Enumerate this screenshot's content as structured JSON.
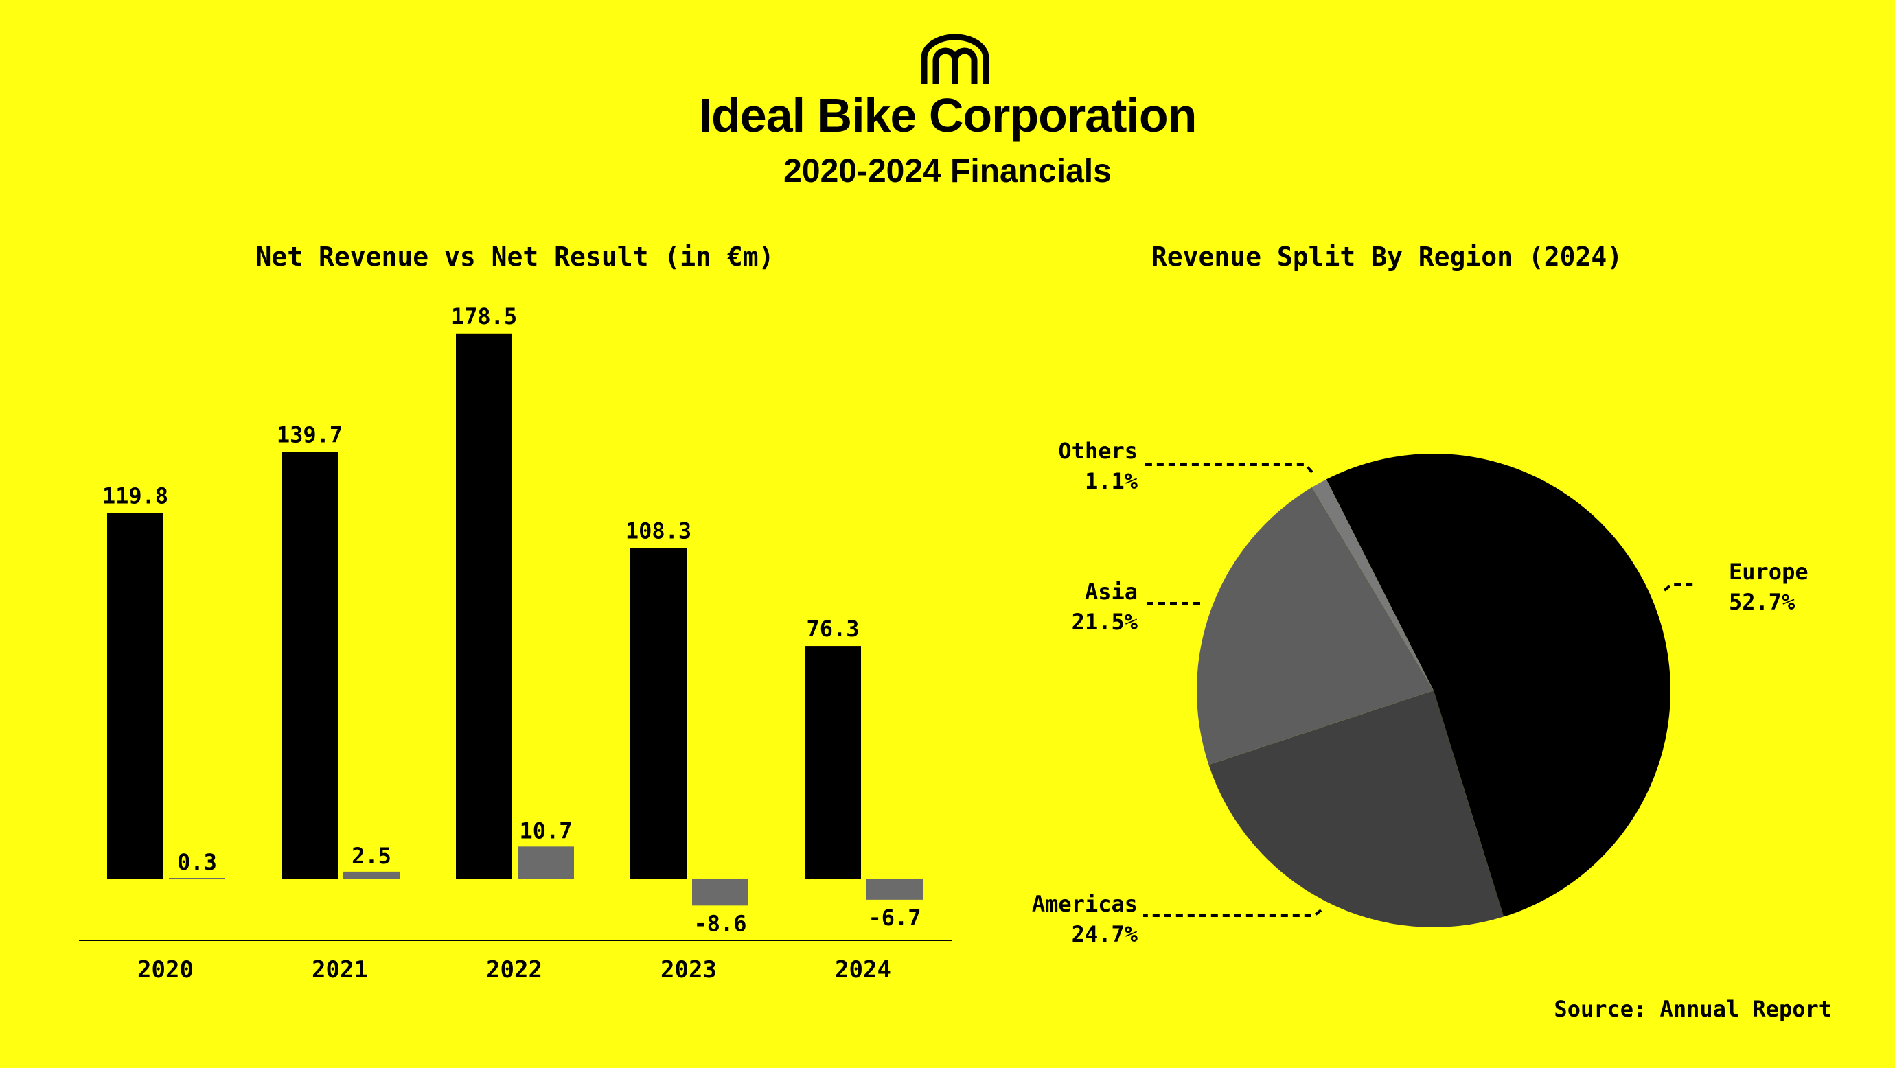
{
  "header": {
    "logo_icon": "m-arches-logo",
    "title": "Ideal Bike Corporation",
    "subtitle": "2020-2024 Financials"
  },
  "footer": {
    "source": "Source: Annual Report"
  },
  "colors": {
    "background": "#FFFF11",
    "revenue": "#000000",
    "result": "#6B6B6B",
    "europe": "#000000",
    "americas": "#404040",
    "asia": "#5E5E5E",
    "others": "#7A7A7A"
  },
  "chart_data": [
    {
      "type": "bar",
      "title": "Net Revenue vs Net Result (in €m)",
      "categories": [
        "2020",
        "2021",
        "2022",
        "2023",
        "2024"
      ],
      "series": [
        {
          "values": [
            119.8,
            139.7,
            178.5,
            108.3,
            76.3
          ],
          "labels": [
            "119.8",
            "139.7",
            "178.5",
            "108.3",
            "76.3"
          ]
        },
        {
          "values": [
            0.3,
            2.5,
            10.7,
            -8.6,
            -6.7
          ],
          "labels": [
            "0.3",
            "2.5",
            "10.7",
            "-8.6",
            "-6.7"
          ]
        }
      ],
      "grid": false
    },
    {
      "type": "pie",
      "title": "Revenue Split By Region (2024)",
      "slices": [
        {
          "name": "Europe",
          "value": 52.7,
          "label": "52.7%"
        },
        {
          "name": "Americas",
          "value": 24.7,
          "label": "24.7%"
        },
        {
          "name": "Asia",
          "value": 21.5,
          "label": "21.5%"
        },
        {
          "name": "Others",
          "value": 1.1,
          "label": "1.1%"
        }
      ]
    }
  ]
}
